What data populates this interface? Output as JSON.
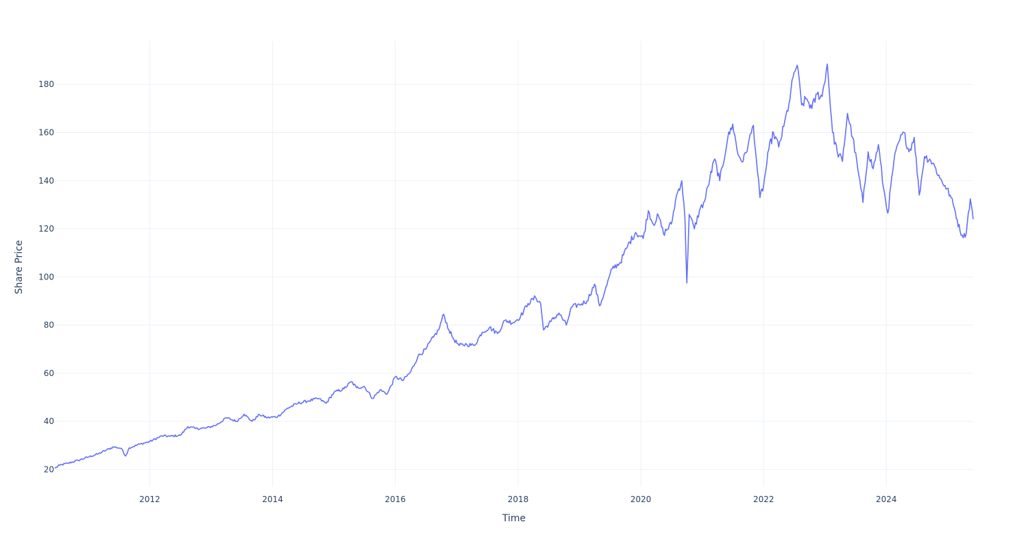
{
  "chart_data": {
    "type": "line",
    "title": "",
    "xlabel": "Time",
    "ylabel": "Share Price",
    "xlim": [
      "2010-06-15",
      "2025-06-01"
    ],
    "ylim": [
      13,
      198
    ],
    "x_ticks": [
      "2012",
      "2014",
      "2016",
      "2018",
      "2020",
      "2022",
      "2024"
    ],
    "y_ticks": [
      20,
      40,
      60,
      80,
      100,
      120,
      140,
      160,
      180
    ],
    "grid": true,
    "legend": "none",
    "series": [
      {
        "color": "#636efa",
        "points": [
          [
            "2010-06-15",
            20.5
          ],
          [
            "2010-07-15",
            21.8
          ],
          [
            "2010-09-01",
            22.6
          ],
          [
            "2010-11-01",
            23.8
          ],
          [
            "2011-01-01",
            25.2
          ],
          [
            "2011-03-01",
            26.5
          ],
          [
            "2011-04-15",
            28.0
          ],
          [
            "2011-06-01",
            29.4
          ],
          [
            "2011-07-15",
            28.8
          ],
          [
            "2011-08-10",
            25.6
          ],
          [
            "2011-09-01",
            29.0
          ],
          [
            "2011-11-01",
            30.5
          ],
          [
            "2012-01-01",
            31.6
          ],
          [
            "2012-03-15",
            34.0
          ],
          [
            "2012-05-01",
            33.8
          ],
          [
            "2012-07-01",
            34.2
          ],
          [
            "2012-08-15",
            37.8
          ],
          [
            "2012-10-01",
            37.0
          ],
          [
            "2012-12-01",
            37.2
          ],
          [
            "2013-02-01",
            38.5
          ],
          [
            "2013-04-01",
            41.5
          ],
          [
            "2013-06-01",
            40.0
          ],
          [
            "2013-07-15",
            43.0
          ],
          [
            "2013-09-01",
            40.0
          ],
          [
            "2013-10-15",
            42.8
          ],
          [
            "2013-12-01",
            41.5
          ],
          [
            "2014-02-01",
            42.0
          ],
          [
            "2014-04-01",
            45.5
          ],
          [
            "2014-06-01",
            47.5
          ],
          [
            "2014-08-01",
            48.5
          ],
          [
            "2014-10-01",
            49.5
          ],
          [
            "2014-11-15",
            47.5
          ],
          [
            "2015-01-01",
            52.0
          ],
          [
            "2015-03-01",
            53.5
          ],
          [
            "2015-04-15",
            56.5
          ],
          [
            "2015-05-15",
            54.0
          ],
          [
            "2015-07-01",
            54.5
          ],
          [
            "2015-08-20",
            49.5
          ],
          [
            "2015-10-01",
            53.0
          ],
          [
            "2015-11-15",
            51.5
          ],
          [
            "2016-01-01",
            58.5
          ],
          [
            "2016-02-15",
            57.0
          ],
          [
            "2016-04-01",
            60.5
          ],
          [
            "2016-05-15",
            67.0
          ],
          [
            "2016-07-01",
            70.0
          ],
          [
            "2016-08-15",
            75.0
          ],
          [
            "2016-09-15",
            78.0
          ],
          [
            "2016-10-15",
            84.5
          ],
          [
            "2016-11-15",
            78.0
          ],
          [
            "2016-12-15",
            74.0
          ],
          [
            "2017-01-15",
            71.5
          ],
          [
            "2017-03-01",
            72.0
          ],
          [
            "2017-04-15",
            71.5
          ],
          [
            "2017-06-01",
            77.0
          ],
          [
            "2017-07-15",
            79.0
          ],
          [
            "2017-09-01",
            76.5
          ],
          [
            "2017-10-15",
            82.0
          ],
          [
            "2017-12-01",
            81.0
          ],
          [
            "2018-01-15",
            83.5
          ],
          [
            "2018-03-01",
            89.0
          ],
          [
            "2018-04-15",
            91.5
          ],
          [
            "2018-05-15",
            89.0
          ],
          [
            "2018-06-01",
            78.0
          ],
          [
            "2018-07-15",
            81.5
          ],
          [
            "2018-09-01",
            85.0
          ],
          [
            "2018-10-15",
            80.0
          ],
          [
            "2018-11-15",
            87.5
          ],
          [
            "2019-01-01",
            88.5
          ],
          [
            "2019-02-15",
            90.0
          ],
          [
            "2019-04-01",
            97.0
          ],
          [
            "2019-05-01",
            88.0
          ],
          [
            "2019-06-01",
            94.0
          ],
          [
            "2019-07-15",
            103.5
          ],
          [
            "2019-09-01",
            106.0
          ],
          [
            "2019-10-15",
            113.0
          ],
          [
            "2019-12-01",
            118.5
          ],
          [
            "2020-01-15",
            116.0
          ],
          [
            "2020-02-15",
            127.5
          ],
          [
            "2020-03-15",
            122.0
          ],
          [
            "2020-04-15",
            125.5
          ],
          [
            "2020-05-15",
            118.0
          ],
          [
            "2020-07-01",
            122.0
          ],
          [
            "2020-08-01",
            134.0
          ],
          [
            "2020-09-01",
            140.0
          ],
          [
            "2020-09-20",
            124.0
          ],
          [
            "2020-10-01",
            97.5
          ],
          [
            "2020-10-15",
            126.0
          ],
          [
            "2020-11-15",
            120.0
          ],
          [
            "2020-12-15",
            127.5
          ],
          [
            "2021-01-15",
            131.5
          ],
          [
            "2021-02-15",
            141.0
          ],
          [
            "2021-03-15",
            149.0
          ],
          [
            "2021-04-15",
            140.0
          ],
          [
            "2021-06-01",
            157.5
          ],
          [
            "2021-07-01",
            163.5
          ],
          [
            "2021-08-01",
            151.0
          ],
          [
            "2021-09-01",
            148.0
          ],
          [
            "2021-10-01",
            155.0
          ],
          [
            "2021-11-01",
            163.0
          ],
          [
            "2021-11-25",
            144.0
          ],
          [
            "2021-12-10",
            133.0
          ],
          [
            "2022-01-01",
            138.0
          ],
          [
            "2022-02-01",
            153.0
          ],
          [
            "2022-03-01",
            160.0
          ],
          [
            "2022-04-01",
            154.0
          ],
          [
            "2022-05-01",
            162.5
          ],
          [
            "2022-06-01",
            172.0
          ],
          [
            "2022-07-01",
            185.0
          ],
          [
            "2022-07-20",
            188.0
          ],
          [
            "2022-08-15",
            171.5
          ],
          [
            "2022-09-15",
            174.0
          ],
          [
            "2022-10-15",
            170.0
          ],
          [
            "2022-11-15",
            176.0
          ],
          [
            "2022-12-15",
            175.0
          ],
          [
            "2023-01-15",
            188.5
          ],
          [
            "2023-02-15",
            160.0
          ],
          [
            "2023-03-15",
            152.0
          ],
          [
            "2023-04-15",
            148.0
          ],
          [
            "2023-05-15",
            168.0
          ],
          [
            "2023-06-15",
            158.0
          ],
          [
            "2023-07-15",
            145.0
          ],
          [
            "2023-08-15",
            131.0
          ],
          [
            "2023-09-15",
            152.0
          ],
          [
            "2023-10-15",
            145.0
          ],
          [
            "2023-11-15",
            155.0
          ],
          [
            "2023-12-15",
            137.0
          ],
          [
            "2024-01-10",
            126.5
          ],
          [
            "2024-02-15",
            148.0
          ],
          [
            "2024-03-15",
            156.0
          ],
          [
            "2024-04-15",
            160.0
          ],
          [
            "2024-05-15",
            152.0
          ],
          [
            "2024-06-15",
            158.0
          ],
          [
            "2024-07-15",
            134.0
          ],
          [
            "2024-08-15",
            150.0
          ],
          [
            "2024-09-15",
            149.0
          ],
          [
            "2024-10-15",
            146.0
          ],
          [
            "2024-11-15",
            141.0
          ],
          [
            "2024-12-15",
            138.0
          ],
          [
            "2025-01-15",
            134.0
          ],
          [
            "2025-02-15",
            127.0
          ],
          [
            "2025-03-15",
            119.0
          ],
          [
            "2025-04-15",
            116.5
          ],
          [
            "2025-05-15",
            132.5
          ],
          [
            "2025-06-01",
            124.0
          ]
        ]
      }
    ]
  }
}
